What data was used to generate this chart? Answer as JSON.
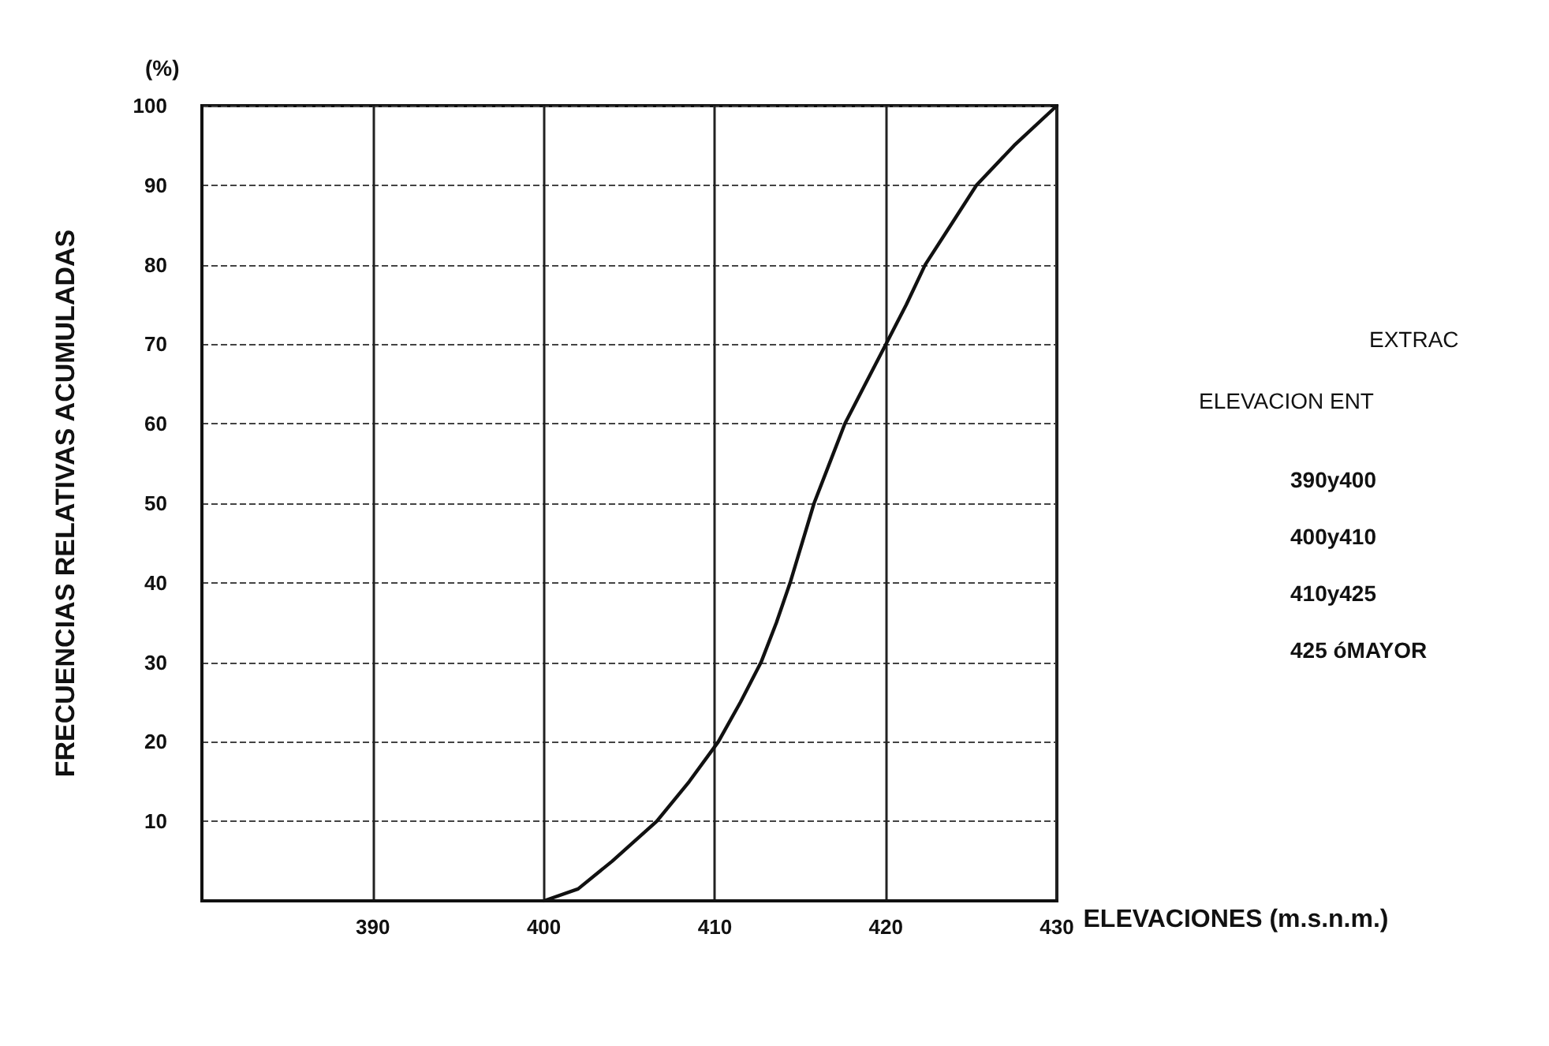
{
  "chart_data": {
    "type": "line",
    "xlabel": "ELEVACIONES (m.s.n.m.)",
    "ylabel": "FRECUENCIAS RELATIVAS ACUMULADAS",
    "annotations": [
      "(%)",
      "EXTRAC",
      "ELEVACION ENT",
      "390y400",
      "400y410",
      "410y425",
      "425 óMAYOR"
    ],
    "series": [
      {
        "color": "#111111",
        "x": [
          400,
          402,
          404,
          406.6,
          408.5,
          410.2,
          411.5,
          412.7,
          413.6,
          414.4,
          415.8,
          416.7,
          417.6,
          418.8,
          420,
          421.2,
          422.3,
          423.8,
          425.3,
          427.5,
          430
        ],
        "values": [
          0,
          1.5,
          5,
          10,
          15,
          20,
          25,
          30,
          35,
          40,
          50,
          55,
          60,
          65,
          70,
          75,
          80,
          85,
          90,
          95,
          100
        ]
      }
    ],
    "xlim": [
      380,
      430
    ],
    "xticks": [
      390,
      400,
      410,
      420,
      430
    ],
    "ylim": [
      0,
      100
    ],
    "yticks": [
      10,
      20,
      30,
      40,
      50,
      60,
      70,
      80,
      90,
      100
    ],
    "grid": true,
    "marker": "none",
    "line_style": "solid"
  }
}
